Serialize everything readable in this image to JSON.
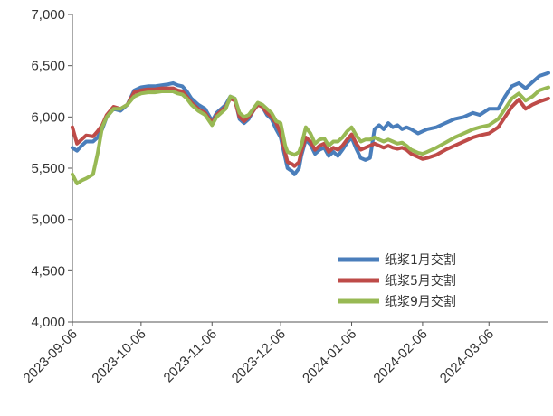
{
  "chart_data": {
    "type": "line",
    "title": "",
    "xlabel": "",
    "ylabel": "",
    "ylim": [
      4000,
      7000
    ],
    "yticks": [
      4000,
      4500,
      5000,
      5500,
      6000,
      6500,
      7000
    ],
    "ytick_labels": [
      "4,000",
      "4,500",
      "5,000",
      "5,500",
      "6,000",
      "6,500",
      "7,000"
    ],
    "xlim": [
      "2023-09-06",
      "2024-04-01"
    ],
    "xticks": [
      "2023-09-06",
      "2023-10-06",
      "2023-11-06",
      "2023-12-06",
      "2024-01-06",
      "2024-02-06",
      "2024-03-06"
    ],
    "xtick_labels": [
      "2023-09-06",
      "2023-10-06",
      "2023-11-06",
      "2023-12-06",
      "2024-01-06",
      "2024-02-06",
      "2024-03-06"
    ],
    "grid": false,
    "legend_position": "bottom-right",
    "series": [
      {
        "name": "纸浆1月交割",
        "color": "#4a7ebb",
        "points": [
          [
            "2023-09-06",
            5700
          ],
          [
            "2023-09-08",
            5670
          ],
          [
            "2023-09-10",
            5720
          ],
          [
            "2023-09-12",
            5760
          ],
          [
            "2023-09-15",
            5760
          ],
          [
            "2023-09-17",
            5800
          ],
          [
            "2023-09-19",
            5880
          ],
          [
            "2023-09-21",
            6000
          ],
          [
            "2023-09-24",
            6080
          ],
          [
            "2023-09-27",
            6060
          ],
          [
            "2023-09-30",
            6120
          ],
          [
            "2023-10-03",
            6260
          ],
          [
            "2023-10-06",
            6290
          ],
          [
            "2023-10-09",
            6300
          ],
          [
            "2023-10-12",
            6300
          ],
          [
            "2023-10-15",
            6310
          ],
          [
            "2023-10-18",
            6320
          ],
          [
            "2023-10-20",
            6330
          ],
          [
            "2023-10-22",
            6310
          ],
          [
            "2023-10-24",
            6300
          ],
          [
            "2023-10-26",
            6250
          ],
          [
            "2023-10-28",
            6180
          ],
          [
            "2023-10-31",
            6120
          ],
          [
            "2023-11-03",
            6080
          ],
          [
            "2023-11-06",
            5960
          ],
          [
            "2023-11-08",
            6040
          ],
          [
            "2023-11-10",
            6080
          ],
          [
            "2023-11-12",
            6120
          ],
          [
            "2023-11-14",
            6200
          ],
          [
            "2023-11-16",
            6180
          ],
          [
            "2023-11-18",
            5980
          ],
          [
            "2023-11-20",
            5940
          ],
          [
            "2023-11-22",
            5980
          ],
          [
            "2023-11-24",
            6060
          ],
          [
            "2023-11-26",
            6120
          ],
          [
            "2023-11-28",
            6100
          ],
          [
            "2023-11-30",
            6020
          ],
          [
            "2023-12-02",
            5980
          ],
          [
            "2023-12-04",
            5880
          ],
          [
            "2023-12-06",
            5800
          ],
          [
            "2023-12-08",
            5600
          ],
          [
            "2023-12-09",
            5500
          ],
          [
            "2023-12-11",
            5470
          ],
          [
            "2023-12-12",
            5440
          ],
          [
            "2023-12-14",
            5500
          ],
          [
            "2023-12-15",
            5620
          ],
          [
            "2023-12-17",
            5780
          ],
          [
            "2023-12-19",
            5730
          ],
          [
            "2023-12-21",
            5640
          ],
          [
            "2023-12-23",
            5680
          ],
          [
            "2023-12-25",
            5700
          ],
          [
            "2023-12-27",
            5620
          ],
          [
            "2023-12-29",
            5660
          ],
          [
            "2023-12-31",
            5620
          ],
          [
            "2024-01-02",
            5680
          ],
          [
            "2024-01-04",
            5750
          ],
          [
            "2024-01-06",
            5800
          ],
          [
            "2024-01-08",
            5690
          ],
          [
            "2024-01-10",
            5600
          ],
          [
            "2024-01-12",
            5580
          ],
          [
            "2024-01-14",
            5600
          ],
          [
            "2024-01-16",
            5880
          ],
          [
            "2024-01-18",
            5920
          ],
          [
            "2024-01-20",
            5880
          ],
          [
            "2024-01-22",
            5940
          ],
          [
            "2024-01-24",
            5900
          ],
          [
            "2024-01-26",
            5920
          ],
          [
            "2024-01-28",
            5880
          ],
          [
            "2024-01-30",
            5900
          ],
          [
            "2024-02-01",
            5880
          ],
          [
            "2024-02-04",
            5840
          ],
          [
            "2024-02-06",
            5860
          ],
          [
            "2024-02-08",
            5880
          ],
          [
            "2024-02-12",
            5900
          ],
          [
            "2024-02-16",
            5940
          ],
          [
            "2024-02-20",
            5980
          ],
          [
            "2024-02-24",
            6000
          ],
          [
            "2024-02-28",
            6040
          ],
          [
            "2024-03-02",
            6020
          ],
          [
            "2024-03-06",
            6080
          ],
          [
            "2024-03-10",
            6080
          ],
          [
            "2024-03-13",
            6200
          ],
          [
            "2024-03-16",
            6300
          ],
          [
            "2024-03-19",
            6330
          ],
          [
            "2024-03-22",
            6280
          ],
          [
            "2024-03-25",
            6340
          ],
          [
            "2024-03-28",
            6400
          ],
          [
            "2024-04-01",
            6430
          ]
        ]
      },
      {
        "name": "纸浆5月交割",
        "color": "#be4b48",
        "points": [
          [
            "2023-09-06",
            5900
          ],
          [
            "2023-09-08",
            5740
          ],
          [
            "2023-09-10",
            5780
          ],
          [
            "2023-09-12",
            5820
          ],
          [
            "2023-09-15",
            5810
          ],
          [
            "2023-09-17",
            5860
          ],
          [
            "2023-09-19",
            5920
          ],
          [
            "2023-09-21",
            6020
          ],
          [
            "2023-09-24",
            6100
          ],
          [
            "2023-09-27",
            6080
          ],
          [
            "2023-09-30",
            6120
          ],
          [
            "2023-10-03",
            6240
          ],
          [
            "2023-10-06",
            6260
          ],
          [
            "2023-10-09",
            6270
          ],
          [
            "2023-10-12",
            6270
          ],
          [
            "2023-10-15",
            6280
          ],
          [
            "2023-10-18",
            6280
          ],
          [
            "2023-10-20",
            6280
          ],
          [
            "2023-10-22",
            6260
          ],
          [
            "2023-10-24",
            6250
          ],
          [
            "2023-10-26",
            6200
          ],
          [
            "2023-10-28",
            6140
          ],
          [
            "2023-10-31",
            6080
          ],
          [
            "2023-11-03",
            6040
          ],
          [
            "2023-11-06",
            5940
          ],
          [
            "2023-11-08",
            6020
          ],
          [
            "2023-11-10",
            6060
          ],
          [
            "2023-11-12",
            6100
          ],
          [
            "2023-11-14",
            6180
          ],
          [
            "2023-11-16",
            6160
          ],
          [
            "2023-11-18",
            6000
          ],
          [
            "2023-11-20",
            5960
          ],
          [
            "2023-11-22",
            6000
          ],
          [
            "2023-11-24",
            6060
          ],
          [
            "2023-11-26",
            6120
          ],
          [
            "2023-11-28",
            6100
          ],
          [
            "2023-11-30",
            6040
          ],
          [
            "2023-12-02",
            6000
          ],
          [
            "2023-12-04",
            5940
          ],
          [
            "2023-12-06",
            5840
          ],
          [
            "2023-12-08",
            5650
          ],
          [
            "2023-12-09",
            5560
          ],
          [
            "2023-12-11",
            5540
          ],
          [
            "2023-12-12",
            5520
          ],
          [
            "2023-12-14",
            5560
          ],
          [
            "2023-12-15",
            5660
          ],
          [
            "2023-12-17",
            5800
          ],
          [
            "2023-12-19",
            5760
          ],
          [
            "2023-12-21",
            5680
          ],
          [
            "2023-12-23",
            5720
          ],
          [
            "2023-12-25",
            5740
          ],
          [
            "2023-12-27",
            5660
          ],
          [
            "2023-12-29",
            5700
          ],
          [
            "2023-12-31",
            5680
          ],
          [
            "2024-01-02",
            5720
          ],
          [
            "2024-01-04",
            5780
          ],
          [
            "2024-01-06",
            5830
          ],
          [
            "2024-01-08",
            5740
          ],
          [
            "2024-01-10",
            5680
          ],
          [
            "2024-01-12",
            5700
          ],
          [
            "2024-01-14",
            5720
          ],
          [
            "2024-01-16",
            5740
          ],
          [
            "2024-01-18",
            5720
          ],
          [
            "2024-01-20",
            5700
          ],
          [
            "2024-01-22",
            5720
          ],
          [
            "2024-01-24",
            5700
          ],
          [
            "2024-01-26",
            5690
          ],
          [
            "2024-01-28",
            5700
          ],
          [
            "2024-01-30",
            5680
          ],
          [
            "2024-02-01",
            5640
          ],
          [
            "2024-02-04",
            5610
          ],
          [
            "2024-02-06",
            5590
          ],
          [
            "2024-02-08",
            5600
          ],
          [
            "2024-02-12",
            5630
          ],
          [
            "2024-02-16",
            5680
          ],
          [
            "2024-02-20",
            5720
          ],
          [
            "2024-02-24",
            5760
          ],
          [
            "2024-02-28",
            5800
          ],
          [
            "2024-03-02",
            5820
          ],
          [
            "2024-03-06",
            5840
          ],
          [
            "2024-03-10",
            5900
          ],
          [
            "2024-03-13",
            6000
          ],
          [
            "2024-03-16",
            6100
          ],
          [
            "2024-03-19",
            6170
          ],
          [
            "2024-03-22",
            6080
          ],
          [
            "2024-03-25",
            6120
          ],
          [
            "2024-03-28",
            6150
          ],
          [
            "2024-04-01",
            6180
          ]
        ]
      },
      {
        "name": "纸浆9月交割",
        "color": "#98b954",
        "points": [
          [
            "2023-09-06",
            5440
          ],
          [
            "2023-09-08",
            5350
          ],
          [
            "2023-09-10",
            5380
          ],
          [
            "2023-09-12",
            5400
          ],
          [
            "2023-09-15",
            5440
          ],
          [
            "2023-09-17",
            5640
          ],
          [
            "2023-09-19",
            5900
          ],
          [
            "2023-09-21",
            6000
          ],
          [
            "2023-09-24",
            6080
          ],
          [
            "2023-09-27",
            6080
          ],
          [
            "2023-09-30",
            6120
          ],
          [
            "2023-10-03",
            6200
          ],
          [
            "2023-10-06",
            6230
          ],
          [
            "2023-10-09",
            6240
          ],
          [
            "2023-10-12",
            6240
          ],
          [
            "2023-10-15",
            6250
          ],
          [
            "2023-10-18",
            6250
          ],
          [
            "2023-10-20",
            6250
          ],
          [
            "2023-10-22",
            6230
          ],
          [
            "2023-10-24",
            6220
          ],
          [
            "2023-10-26",
            6180
          ],
          [
            "2023-10-28",
            6120
          ],
          [
            "2023-10-31",
            6060
          ],
          [
            "2023-11-03",
            6020
          ],
          [
            "2023-11-06",
            5920
          ],
          [
            "2023-11-08",
            6000
          ],
          [
            "2023-11-10",
            6040
          ],
          [
            "2023-11-12",
            6080
          ],
          [
            "2023-11-14",
            6200
          ],
          [
            "2023-11-16",
            6180
          ],
          [
            "2023-11-18",
            6040
          ],
          [
            "2023-11-20",
            6000
          ],
          [
            "2023-11-22",
            6020
          ],
          [
            "2023-11-24",
            6080
          ],
          [
            "2023-11-26",
            6140
          ],
          [
            "2023-11-28",
            6120
          ],
          [
            "2023-11-30",
            6080
          ],
          [
            "2023-12-02",
            6040
          ],
          [
            "2023-12-04",
            5960
          ],
          [
            "2023-12-06",
            5940
          ],
          [
            "2023-12-08",
            5720
          ],
          [
            "2023-12-09",
            5660
          ],
          [
            "2023-12-11",
            5640
          ],
          [
            "2023-12-12",
            5630
          ],
          [
            "2023-12-14",
            5660
          ],
          [
            "2023-12-15",
            5720
          ],
          [
            "2023-12-17",
            5900
          ],
          [
            "2023-12-19",
            5840
          ],
          [
            "2023-12-21",
            5740
          ],
          [
            "2023-12-23",
            5780
          ],
          [
            "2023-12-25",
            5790
          ],
          [
            "2023-12-27",
            5720
          ],
          [
            "2023-12-29",
            5760
          ],
          [
            "2023-12-31",
            5760
          ],
          [
            "2024-01-02",
            5800
          ],
          [
            "2024-01-04",
            5860
          ],
          [
            "2024-01-06",
            5900
          ],
          [
            "2024-01-08",
            5820
          ],
          [
            "2024-01-10",
            5760
          ],
          [
            "2024-01-12",
            5780
          ],
          [
            "2024-01-14",
            5780
          ],
          [
            "2024-01-16",
            5800
          ],
          [
            "2024-01-18",
            5780
          ],
          [
            "2024-01-20",
            5760
          ],
          [
            "2024-01-22",
            5780
          ],
          [
            "2024-01-24",
            5760
          ],
          [
            "2024-01-26",
            5740
          ],
          [
            "2024-01-28",
            5750
          ],
          [
            "2024-01-30",
            5720
          ],
          [
            "2024-02-01",
            5680
          ],
          [
            "2024-02-04",
            5650
          ],
          [
            "2024-02-06",
            5640
          ],
          [
            "2024-02-08",
            5660
          ],
          [
            "2024-02-12",
            5700
          ],
          [
            "2024-02-16",
            5750
          ],
          [
            "2024-02-20",
            5800
          ],
          [
            "2024-02-24",
            5840
          ],
          [
            "2024-02-28",
            5880
          ],
          [
            "2024-03-02",
            5900
          ],
          [
            "2024-03-06",
            5920
          ],
          [
            "2024-03-10",
            5980
          ],
          [
            "2024-03-13",
            6080
          ],
          [
            "2024-03-16",
            6180
          ],
          [
            "2024-03-19",
            6230
          ],
          [
            "2024-03-22",
            6160
          ],
          [
            "2024-03-25",
            6200
          ],
          [
            "2024-03-28",
            6260
          ],
          [
            "2024-04-01",
            6290
          ]
        ]
      }
    ]
  }
}
